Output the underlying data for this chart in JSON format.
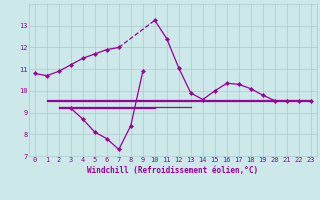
{
  "xlabel": "Windchill (Refroidissement éolien,°C)",
  "x_all": [
    0,
    1,
    2,
    3,
    4,
    5,
    6,
    7,
    8,
    9,
    10,
    11,
    12,
    13,
    14,
    15,
    16,
    17,
    18,
    19,
    20,
    21,
    22,
    23
  ],
  "y_upper": [
    10.8,
    10.7,
    10.9,
    11.2,
    11.5,
    11.7,
    11.9,
    12.0,
    null,
    null,
    13.25,
    12.4,
    11.05,
    9.9,
    9.6,
    10.0,
    10.35,
    10.3,
    10.1,
    9.8,
    9.55,
    9.55,
    9.55,
    9.55
  ],
  "x_lower": [
    3,
    4,
    5,
    6,
    7,
    8,
    9
  ],
  "y_lower": [
    9.2,
    8.7,
    8.1,
    7.8,
    7.3,
    8.4,
    10.9
  ],
  "flat_lines": [
    {
      "x_start": 1,
      "x_end": 23,
      "y": 9.6
    },
    {
      "x_start": 1,
      "x_end": 23,
      "y": 9.55
    },
    {
      "x_start": 2,
      "x_end": 13,
      "y": 9.25
    },
    {
      "x_start": 2,
      "x_end": 10,
      "y": 9.2
    }
  ],
  "line_color": "#990099",
  "bg_color": "#cce8e8",
  "grid_color": "#aacccc",
  "text_color": "#990099",
  "ylim": [
    7,
    14
  ],
  "yticks": [
    7,
    8,
    9,
    10,
    11,
    12,
    13
  ],
  "xlim": [
    -0.5,
    23.5
  ],
  "xlabel_fontsize": 5.5,
  "tick_fontsize": 5.0,
  "linewidth": 0.9,
  "markersize": 2.2
}
